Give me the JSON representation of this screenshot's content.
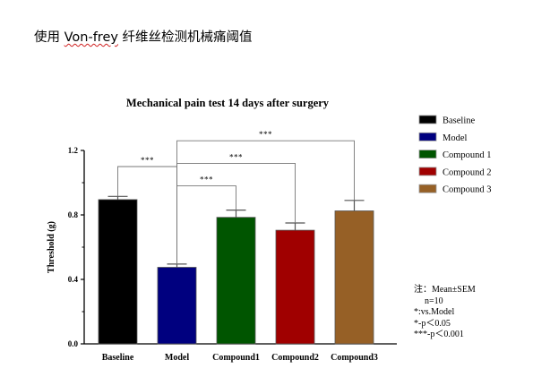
{
  "document": {
    "heading_prefix": "使用 ",
    "heading_link": "Von-frey",
    "heading_suffix": " 纤维丝检测机械痛阈值"
  },
  "chart_data": {
    "type": "bar",
    "title": "Mechanical pain test 14 days after surgery",
    "xlabel": "",
    "ylabel": "Threshold (g)",
    "ylim": [
      0,
      1.2
    ],
    "yticks": [
      0.0,
      0.4,
      0.8,
      1.2
    ],
    "ytick_labels": [
      "0.0",
      "0.4",
      "0.8",
      "1.2"
    ],
    "categories": [
      "Baseline",
      "Model",
      "Compound1",
      "Compound2",
      "Compound3"
    ],
    "values": [
      0.895,
      0.475,
      0.785,
      0.705,
      0.825
    ],
    "errors": [
      0.02,
      0.02,
      0.045,
      0.045,
      0.065
    ],
    "colors": [
      "#000000",
      "#00007f",
      "#005500",
      "#a00000",
      "#966026"
    ],
    "legend": {
      "placement": "right",
      "entries": [
        "Baseline",
        "Model",
        "Compound 1",
        "Compound 2",
        "Compound 3"
      ]
    },
    "significance": [
      {
        "from": 1,
        "to": 0,
        "level": 1.1,
        "label": "***"
      },
      {
        "from": 1,
        "to": 2,
        "level": 0.98,
        "label": "***"
      },
      {
        "from": 1,
        "to": 3,
        "level": 1.12,
        "label": "***"
      },
      {
        "from": 1,
        "to": 4,
        "level": 1.26,
        "label": "***"
      }
    ],
    "grid": false
  },
  "notes": {
    "line1": "注：Mean±SEM",
    "line2": "n=10",
    "line3": "*:vs.Model",
    "line4": "*-p＜0.05",
    "line5": "***-p＜0.001"
  }
}
